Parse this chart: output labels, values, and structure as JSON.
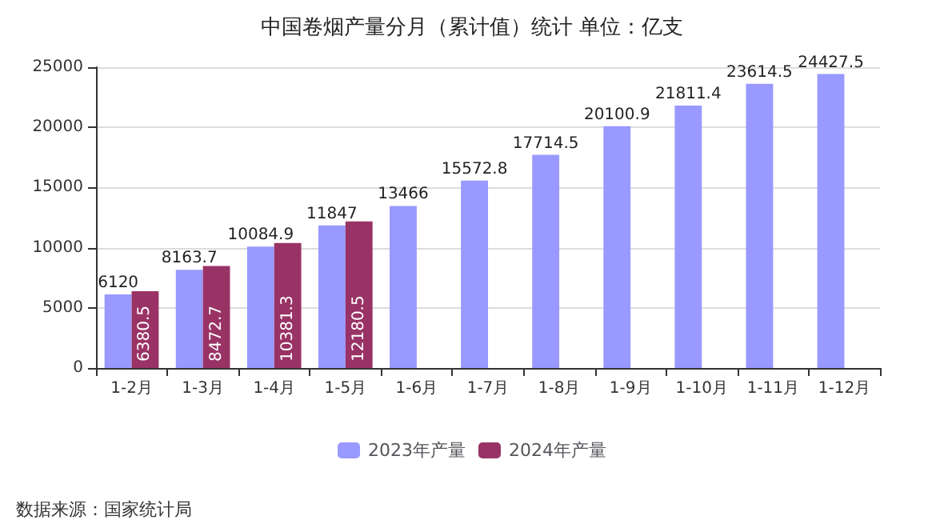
{
  "chart_data": {
    "type": "bar",
    "title": "中国卷烟产量分月（累计值）统计 单位：亿支",
    "categories": [
      "1-2月",
      "1-3月",
      "1-4月",
      "1-5月",
      "1-6月",
      "1-7月",
      "1-8月",
      "1-9月",
      "1-10月",
      "1-11月",
      "1-12月"
    ],
    "series": [
      {
        "name": "2023年产量",
        "color": "#9999ff",
        "values": [
          6120,
          8163.7,
          10084.9,
          11847,
          13466,
          15572.8,
          17714.5,
          20100.9,
          21811.4,
          23614.5,
          24427.5
        ]
      },
      {
        "name": "2024年产量",
        "color": "#993366",
        "values": [
          6380.5,
          8472.7,
          10381.3,
          12180.5,
          null,
          null,
          null,
          null,
          null,
          null,
          null
        ]
      }
    ],
    "ylim": [
      0,
      25000
    ],
    "yticks": [
      0,
      5000,
      10000,
      15000,
      20000,
      25000
    ],
    "grid": "y",
    "legend": "bottom",
    "data_labels": true,
    "annotations": [
      "数据来源：国家统计局"
    ]
  }
}
